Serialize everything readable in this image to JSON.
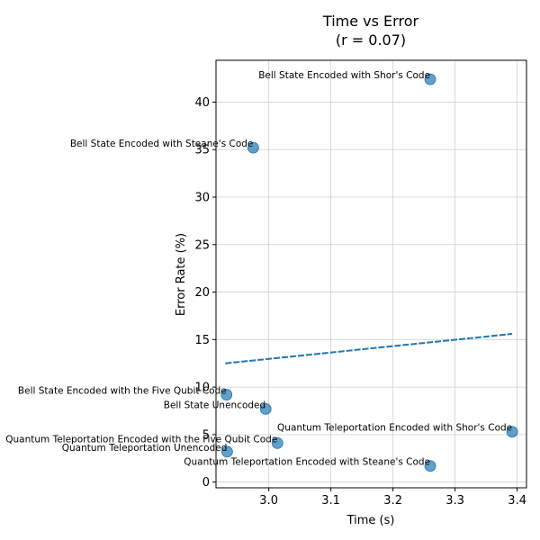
{
  "chart_data": {
    "type": "scatter",
    "title": "Time vs Error",
    "subtitle": "(r = 0.07)",
    "xlabel": "Time (s)",
    "ylabel": "Error Rate (%)",
    "xlim": [
      2.915,
      3.415
    ],
    "ylim": [
      -0.6,
      44.4
    ],
    "xticks": [
      3.0,
      3.1,
      3.2,
      3.3,
      3.4
    ],
    "yticks": [
      0,
      5,
      10,
      15,
      20,
      25,
      30,
      35,
      40
    ],
    "xtick_labels": [
      "3.0",
      "3.1",
      "3.2",
      "3.3",
      "3.4"
    ],
    "ytick_labels": [
      "0",
      "5",
      "10",
      "15",
      "20",
      "25",
      "30",
      "35",
      "40"
    ],
    "grid": true,
    "point_color": "#1f77b4",
    "trend_color": "#1f77b4",
    "points": [
      {
        "label": "Bell State Encoded with Shor's Code",
        "x": 3.26,
        "y": 42.4
      },
      {
        "label": "Bell State Encoded with Steane's Code",
        "x": 2.975,
        "y": 35.2
      },
      {
        "label": "Bell State Encoded with the Five Qubit Code",
        "x": 2.932,
        "y": 9.2
      },
      {
        "label": "Bell State Unencoded",
        "x": 2.995,
        "y": 7.7
      },
      {
        "label": "Quantum Teleportation Encoded with Shor's Code",
        "x": 3.392,
        "y": 5.3
      },
      {
        "label": "Quantum Teleportation Encoded with the Five Qubit Code",
        "x": 3.014,
        "y": 4.1
      },
      {
        "label": "Quantum Teleportation Unencoded",
        "x": 2.933,
        "y": 3.2
      },
      {
        "label": "Quantum Teleportation Encoded with Steane's Code",
        "x": 3.26,
        "y": 1.7
      }
    ],
    "trend": {
      "x": [
        2.93,
        3.392
      ],
      "y": [
        12.5,
        15.6
      ]
    }
  }
}
